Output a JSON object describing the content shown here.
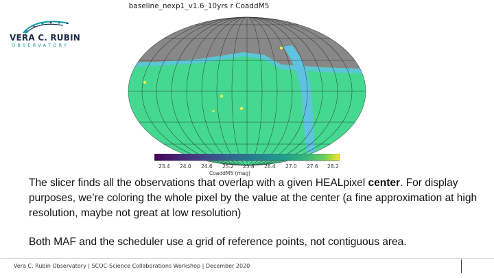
{
  "logo": {
    "title": "VERA C. RUBIN",
    "subtitle": "OBSERVATORY",
    "colors": {
      "navy": "#1f2c4a",
      "teal": "#0e9aa7"
    }
  },
  "figure": {
    "title": "baseline_nexp1_v1.6_10yrs r  CoaddM5",
    "colorbar_label": "CoaddM5 (mag)",
    "colorbar_ticks": [
      "23.4",
      "24.0",
      "24.6",
      "25.2",
      "25.8",
      "26.4",
      "27.0",
      "27.6",
      "28.2"
    ],
    "colors": {
      "masked": "#888888",
      "sky": "#45d890",
      "stream": "#5fc3e0"
    }
  },
  "slide": {
    "paragraph_1": "The slicer finds all the observations that overlap with a given HEALpixel center. For display purposes, we’re coloring the whole pixel by the value at the center (a fine approximation at high resolution, maybe not great at low resolution)",
    "paragraph_2": "Both MAF and the scheduler use a grid of reference points, not contiguous area.",
    "footer": "Vera C. Rubin Observatory  | SCOC-Science Collaborations Workshop |  December 2020"
  }
}
